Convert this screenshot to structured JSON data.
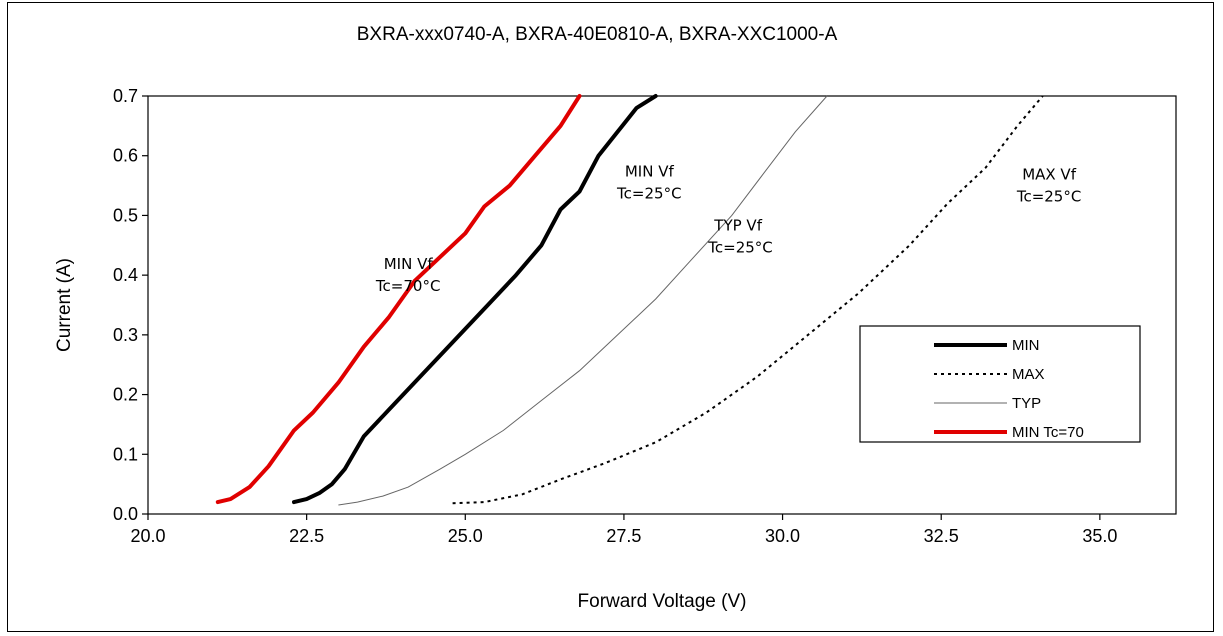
{
  "chart_data": {
    "type": "line",
    "title": "BXRA-xxx0740-A, BXRA-40E0810-A, BXRA-XXC1000-A",
    "xlabel": "Forward Voltage (V)",
    "ylabel": "Current (A)",
    "xlim": [
      20.0,
      36.2
    ],
    "ylim": [
      0.0,
      0.7
    ],
    "x_ticks": [
      "20.0",
      "22.5",
      "25.0",
      "27.5",
      "30.0",
      "32.5",
      "35.0"
    ],
    "x_tick_values": [
      20.0,
      22.5,
      25.0,
      27.5,
      30.0,
      32.5,
      35.0
    ],
    "y_ticks": [
      "0.0",
      "0.1",
      "0.2",
      "0.3",
      "0.4",
      "0.5",
      "0.6",
      "0.7"
    ],
    "y_tick_values": [
      0.0,
      0.1,
      0.2,
      0.3,
      0.4,
      0.5,
      0.6,
      0.7
    ],
    "grid": false,
    "legend_position": "right",
    "series": [
      {
        "name": "MIN",
        "color": "#000000",
        "style": "solid-thick",
        "x": [
          22.3,
          22.5,
          22.7,
          22.9,
          23.1,
          23.4,
          23.8,
          24.2,
          24.6,
          25.0,
          25.4,
          25.8,
          26.2,
          26.5,
          26.8,
          27.1,
          27.4,
          27.7,
          28.0
        ],
        "y": [
          0.02,
          0.025,
          0.035,
          0.05,
          0.075,
          0.13,
          0.175,
          0.22,
          0.265,
          0.31,
          0.355,
          0.4,
          0.45,
          0.51,
          0.54,
          0.6,
          0.64,
          0.68,
          0.7
        ]
      },
      {
        "name": "MAX",
        "color": "#000000",
        "style": "dotted",
        "x": [
          24.8,
          25.3,
          25.9,
          26.5,
          27.2,
          28.0,
          28.8,
          29.6,
          30.4,
          31.2,
          32.0,
          32.6,
          33.2,
          33.7,
          34.1
        ],
        "y": [
          0.018,
          0.02,
          0.033,
          0.058,
          0.085,
          0.12,
          0.17,
          0.23,
          0.3,
          0.37,
          0.45,
          0.52,
          0.58,
          0.65,
          0.7
        ]
      },
      {
        "name": "TYP",
        "color": "#666666",
        "style": "solid-thin",
        "x": [
          23.0,
          23.3,
          23.7,
          24.1,
          24.6,
          25.0,
          25.6,
          26.2,
          26.8,
          27.4,
          28.0,
          28.6,
          29.2,
          29.7,
          30.2,
          30.7
        ],
        "y": [
          0.015,
          0.02,
          0.03,
          0.045,
          0.075,
          0.1,
          0.14,
          0.19,
          0.24,
          0.3,
          0.36,
          0.43,
          0.5,
          0.57,
          0.64,
          0.7
        ]
      },
      {
        "name": "MIN Tc=70",
        "color": "#e00000",
        "style": "solid-thick",
        "x": [
          21.1,
          21.3,
          21.6,
          21.9,
          22.1,
          22.3,
          22.6,
          23.0,
          23.4,
          23.8,
          24.2,
          24.6,
          25.0,
          25.3,
          25.7,
          26.1,
          26.5,
          26.8
        ],
        "y": [
          0.02,
          0.025,
          0.045,
          0.08,
          0.11,
          0.14,
          0.17,
          0.22,
          0.28,
          0.33,
          0.39,
          0.43,
          0.47,
          0.515,
          0.55,
          0.6,
          0.65,
          0.7
        ]
      }
    ],
    "annotations": [
      {
        "lines": [
          "MIN Vf",
          "Tc=70°C"
        ],
        "x": 24.1,
        "y": 0.41
      },
      {
        "lines": [
          "MIN Vf",
          "Tc=25°C"
        ],
        "x": 27.9,
        "y": 0.565
      },
      {
        "lines": [
          "TYP Vf",
          " Tc=25°C"
        ],
        "x": 29.3,
        "y": 0.475
      },
      {
        "lines": [
          "MAX Vf",
          "Tc=25°C"
        ],
        "x": 34.2,
        "y": 0.56
      }
    ]
  }
}
